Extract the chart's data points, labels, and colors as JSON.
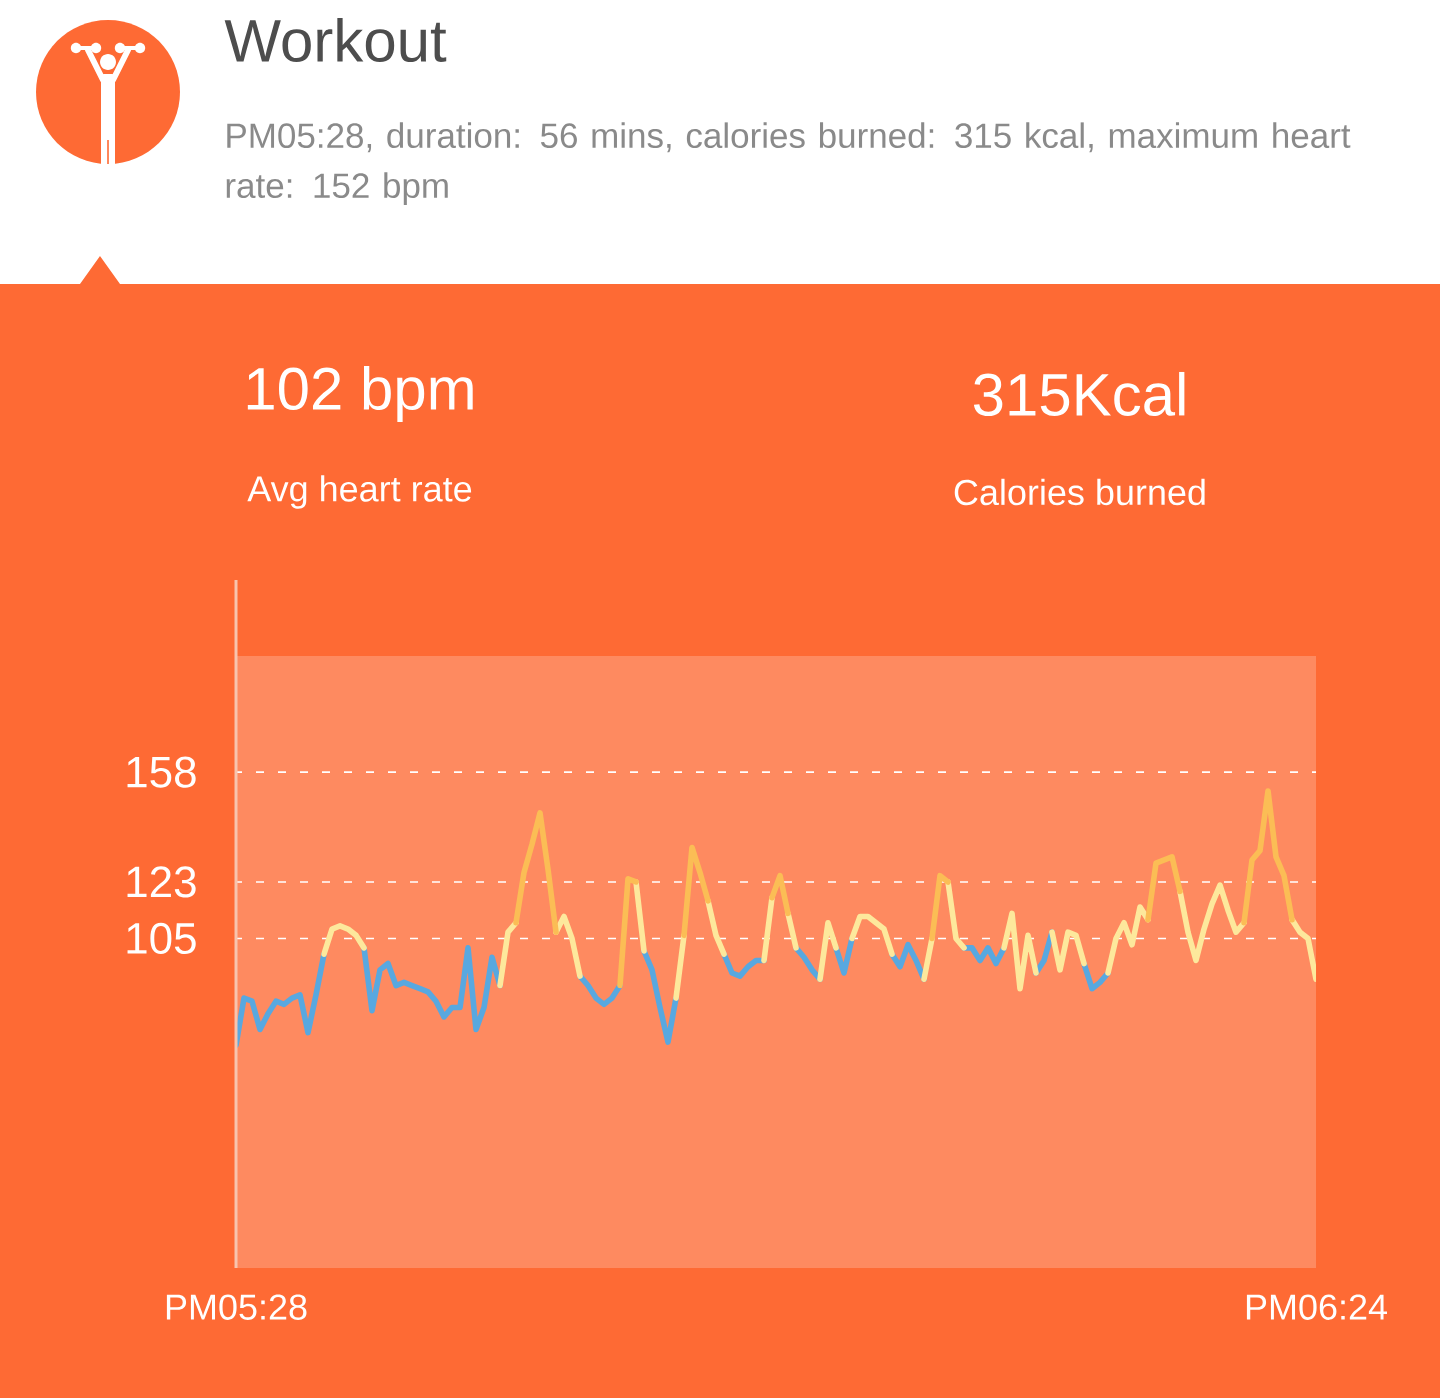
{
  "chart_data": {
    "type": "line",
    "title": "Workout",
    "subtitle": "PM05:28, duration: 56 mins, calories burned: 315 kcal, maximum heart rate: 152 bpm",
    "annotations": [
      "102 bpm",
      "Avg heart rate",
      "315Kcal",
      "Calories burned"
    ],
    "categories": [
      "PM05:28",
      null,
      null,
      null,
      null,
      null,
      null,
      null,
      null,
      null,
      null,
      null,
      null,
      null,
      null,
      null,
      null,
      null,
      null,
      null,
      null,
      null,
      null,
      null,
      null,
      null,
      null,
      null,
      null,
      null,
      null,
      null,
      null,
      null,
      null,
      null,
      null,
      null,
      null,
      null,
      null,
      null,
      null,
      null,
      null,
      null,
      null,
      null,
      null,
      null,
      null,
      null,
      null,
      null,
      null,
      null,
      null,
      null,
      null,
      null,
      null,
      null,
      null,
      null,
      null,
      null,
      null,
      null,
      null,
      null,
      null,
      null,
      null,
      null,
      null,
      null,
      null,
      null,
      null,
      null,
      null,
      null,
      null,
      null,
      null,
      null,
      null,
      null,
      null,
      null,
      null,
      null,
      null,
      null,
      null,
      null,
      null,
      null,
      null,
      null,
      null,
      null,
      null,
      null,
      null,
      null,
      null,
      null,
      null,
      null,
      null,
      null,
      null,
      null,
      null,
      null,
      null,
      null,
      null,
      null,
      null,
      null,
      null,
      null,
      null,
      null,
      null,
      null,
      null,
      null,
      null,
      null,
      null,
      null,
      null,
      "PM06:24"
    ],
    "series": [
      {
        "color": "#58a8e0",
        "values": [
          71,
          86,
          85,
          76,
          81,
          85,
          84,
          86,
          87,
          75,
          87,
          100,
          null,
          null,
          null,
          null,
          102,
          82,
          95,
          97,
          90,
          91,
          90,
          89,
          88,
          85,
          80,
          83,
          83,
          102,
          76,
          83,
          99,
          90,
          null,
          null,
          null,
          null,
          null,
          null,
          null,
          null,
          null,
          93,
          90,
          86,
          84,
          86,
          90,
          null,
          null,
          101,
          95,
          83,
          72,
          86,
          null,
          null,
          null,
          null,
          null,
          100,
          94,
          93,
          96,
          98,
          98,
          null,
          null,
          null,
          102,
          99,
          95,
          92,
          null,
          102,
          94,
          105,
          null,
          null,
          null,
          null,
          100,
          96,
          103,
          98,
          92,
          null,
          null,
          null,
          null,
          102,
          102,
          98,
          102,
          97,
          102,
          null,
          null,
          null,
          94,
          98,
          107,
          null,
          null,
          null,
          97,
          89,
          91,
          94,
          null,
          null,
          null,
          null,
          null,
          null,
          null,
          null,
          null,
          null,
          null,
          null,
          null,
          null,
          null,
          null,
          null,
          null,
          null,
          null,
          null,
          null,
          null,
          null,
          null,
          null
        ]
      },
      {
        "color": "#fde89c",
        "values": [
          null,
          null,
          null,
          null,
          null,
          null,
          null,
          null,
          null,
          null,
          null,
          100,
          108,
          109,
          108,
          106,
          102,
          null,
          null,
          null,
          null,
          null,
          null,
          null,
          null,
          null,
          null,
          null,
          null,
          null,
          null,
          null,
          null,
          90,
          107,
          110,
          null,
          null,
          null,
          null,
          107,
          112,
          105,
          93,
          null,
          null,
          null,
          null,
          null,
          null,
          123,
          101,
          null,
          null,
          null,
          86,
          106,
          null,
          null,
          117,
          106,
          100,
          null,
          null,
          null,
          null,
          98,
          118,
          null,
          113,
          102,
          null,
          null,
          92,
          110,
          102,
          null,
          105,
          112,
          112,
          110,
          108,
          100,
          null,
          null,
          null,
          92,
          105,
          null,
          123,
          105,
          102,
          null,
          null,
          null,
          null,
          102,
          113,
          89,
          106,
          94,
          null,
          107,
          95,
          107,
          106,
          97,
          null,
          null,
          94,
          105,
          110,
          103,
          115,
          111,
          null,
          null,
          null,
          120,
          107,
          98,
          108,
          116,
          122,
          114,
          107,
          110,
          null,
          null,
          null,
          null,
          null,
          111,
          107,
          105,
          92
        ]
      },
      {
        "color": "#fbbd55",
        "values": [
          null,
          null,
          null,
          null,
          null,
          null,
          null,
          null,
          null,
          null,
          null,
          null,
          null,
          null,
          null,
          null,
          null,
          null,
          null,
          null,
          null,
          null,
          null,
          null,
          null,
          null,
          null,
          null,
          null,
          null,
          null,
          null,
          null,
          null,
          null,
          110,
          126,
          135,
          145,
          127,
          107,
          null,
          null,
          null,
          null,
          null,
          null,
          null,
          90,
          124,
          123,
          null,
          null,
          null,
          null,
          null,
          106,
          134,
          126,
          117,
          null,
          null,
          null,
          null,
          null,
          null,
          null,
          118,
          125,
          113,
          null,
          null,
          null,
          null,
          null,
          null,
          null,
          null,
          null,
          null,
          null,
          null,
          null,
          null,
          null,
          null,
          null,
          105,
          125,
          123,
          null,
          null,
          null,
          null,
          null,
          null,
          null,
          null,
          null,
          null,
          null,
          null,
          null,
          null,
          null,
          null,
          null,
          null,
          null,
          null,
          null,
          null,
          null,
          null,
          111,
          129,
          130,
          131,
          120,
          null,
          null,
          null,
          null,
          null,
          null,
          null,
          110,
          130,
          133,
          152,
          131,
          125,
          111,
          null,
          null,
          null
        ]
      }
    ],
    "ylim": [
      0,
      195
    ],
    "yticks": [
      105,
      123,
      158
    ],
    "grid": "y"
  }
}
